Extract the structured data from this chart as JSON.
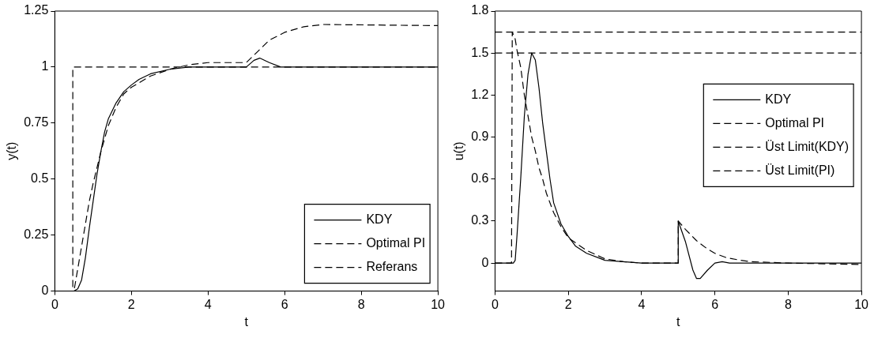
{
  "chart_data": [
    {
      "type": "line",
      "xlabel": "t",
      "ylabel": "y(t)",
      "xlim": [
        0,
        10
      ],
      "xticks": [
        0,
        2,
        4,
        6,
        8,
        10
      ],
      "ylim": [
        0,
        1.25
      ],
      "yticks": [
        0,
        0.25,
        0.5,
        0.75,
        1,
        1.25
      ],
      "grid": false,
      "legend": "bottom right",
      "marker": "none",
      "series": [
        {
          "name": "KDY",
          "color": "#000000",
          "line_style": "solid",
          "x": [
            0,
            0.5,
            0.6,
            0.7,
            0.8,
            0.9,
            1.0,
            1.1,
            1.2,
            1.3,
            1.4,
            1.6,
            1.8,
            2.0,
            2.2,
            2.5,
            3.0,
            3.5,
            5.0,
            5.2,
            5.35,
            5.6,
            5.9,
            10
          ],
          "values": [
            0,
            0,
            0.01,
            0.05,
            0.15,
            0.28,
            0.4,
            0.52,
            0.62,
            0.71,
            0.77,
            0.84,
            0.89,
            0.92,
            0.945,
            0.97,
            0.99,
            1.0,
            1.0,
            1.03,
            1.04,
            1.02,
            1.0,
            1.0
          ]
        },
        {
          "name": "Optimal PI",
          "color": "#000000",
          "line_style": "dashed",
          "x": [
            0,
            0.5,
            0.6,
            0.7,
            0.8,
            0.9,
            1.0,
            1.1,
            1.2,
            1.3,
            1.4,
            1.6,
            1.8,
            2.0,
            2.5,
            3.0,
            3.5,
            4.0,
            5.0,
            5.3,
            5.6,
            6.0,
            6.5,
            7.0,
            10
          ],
          "values": [
            0,
            0,
            0.1,
            0.2,
            0.3,
            0.4,
            0.48,
            0.55,
            0.62,
            0.68,
            0.74,
            0.82,
            0.88,
            0.91,
            0.96,
            0.99,
            1.01,
            1.02,
            1.02,
            1.07,
            1.12,
            1.155,
            1.18,
            1.19,
            1.185
          ]
        },
        {
          "name": "Referans",
          "color": "#000000",
          "line_style": "dashed",
          "x": [
            0,
            0.47,
            0.47,
            10
          ],
          "values": [
            0,
            0,
            1,
            1
          ]
        }
      ]
    },
    {
      "type": "line",
      "xlabel": "t",
      "ylabel": "u(t)",
      "xlim": [
        0,
        10
      ],
      "xticks": [
        0,
        2,
        4,
        6,
        8,
        10
      ],
      "ylim": [
        -0.2,
        1.8
      ],
      "yticks": [
        0,
        0.3,
        0.6,
        0.9,
        1.2,
        1.5,
        1.8
      ],
      "grid": false,
      "legend": "right",
      "marker": "none",
      "series": [
        {
          "name": "KDY",
          "color": "#000000",
          "line_style": "solid",
          "x": [
            0,
            0.5,
            0.55,
            0.6,
            0.7,
            0.8,
            0.9,
            1.0,
            1.1,
            1.2,
            1.3,
            1.4,
            1.5,
            1.6,
            1.8,
            2.0,
            2.2,
            2.5,
            3.0,
            3.5,
            4.0,
            5.0,
            5.0,
            5.2,
            5.4,
            5.5,
            5.6,
            5.8,
            6.0,
            6.2,
            6.4,
            10
          ],
          "values": [
            0,
            0,
            0.02,
            0.2,
            0.6,
            1.05,
            1.35,
            1.5,
            1.45,
            1.25,
            1.0,
            0.8,
            0.6,
            0.43,
            0.28,
            0.19,
            0.12,
            0.07,
            0.02,
            0.01,
            0,
            0,
            0.3,
            0.15,
            -0.05,
            -0.11,
            -0.11,
            -0.05,
            0,
            0.01,
            0,
            0
          ]
        },
        {
          "name": "Optimal PI",
          "color": "#000000",
          "line_style": "dashed",
          "x": [
            0,
            0.45,
            0.47,
            0.55,
            0.6,
            0.7,
            0.8,
            0.9,
            1.0,
            1.1,
            1.2,
            1.3,
            1.4,
            1.6,
            1.8,
            2.0,
            2.5,
            3.0,
            3.5,
            4.0,
            5.0,
            5.0,
            5.1,
            5.2,
            5.5,
            5.8,
            6.0,
            6.3,
            6.7,
            7.0,
            8.0,
            10
          ],
          "values": [
            0,
            0,
            1.65,
            1.6,
            1.52,
            1.4,
            1.2,
            1.05,
            0.9,
            0.8,
            0.68,
            0.6,
            0.5,
            0.36,
            0.26,
            0.18,
            0.09,
            0.03,
            0.01,
            0,
            0,
            0.3,
            0.27,
            0.24,
            0.16,
            0.1,
            0.07,
            0.04,
            0.02,
            0.01,
            0,
            -0.01
          ]
        },
        {
          "name": "Üst Limit(KDY)",
          "color": "#000000",
          "line_style": "dashed",
          "x": [
            0,
            10
          ],
          "values": [
            1.5,
            1.5
          ]
        },
        {
          "name": "Üst Limit(PI)",
          "color": "#000000",
          "line_style": "dashed",
          "x": [
            0,
            10
          ],
          "values": [
            1.65,
            1.65
          ]
        }
      ]
    }
  ]
}
